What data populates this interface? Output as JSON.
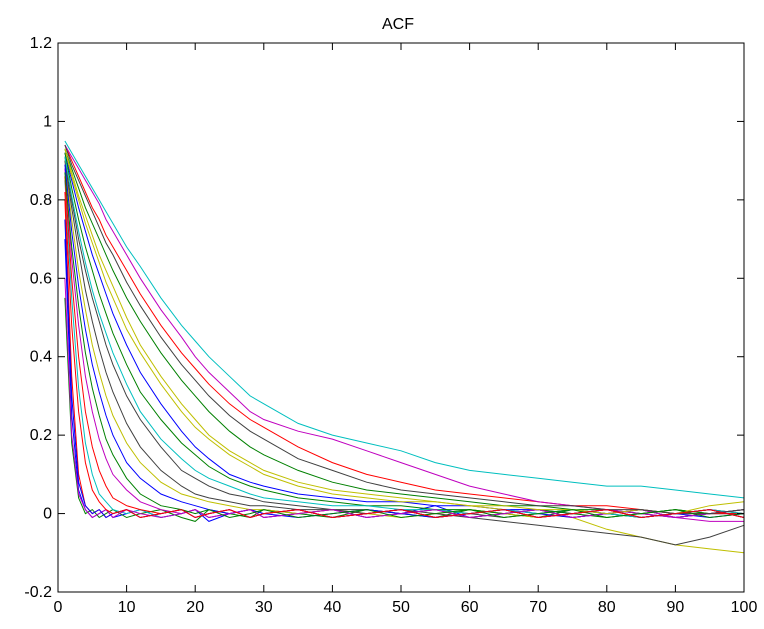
{
  "chart_data": {
    "type": "line",
    "title": "ACF",
    "xlabel": "",
    "ylabel": "",
    "xlim": [
      0,
      100
    ],
    "ylim": [
      -0.2,
      1.2
    ],
    "xticks": [
      0,
      10,
      20,
      30,
      40,
      50,
      60,
      70,
      80,
      90,
      100
    ],
    "xtick_labels": [
      "0",
      "10",
      "20",
      "30",
      "40",
      "50",
      "60",
      "70",
      "80",
      "90",
      "100"
    ],
    "yticks": [
      -0.2,
      0,
      0.2,
      0.4,
      0.6,
      0.8,
      1,
      1.2
    ],
    "ytick_labels": [
      "-0.2",
      "0",
      "0.2",
      "0.4",
      "0.6",
      "0.8",
      "1",
      "1.2"
    ],
    "grid": false,
    "legend": "none",
    "palette": [
      "#0000ff",
      "#008000",
      "#ff0000",
      "#00bfbf",
      "#bf00bf",
      "#bfbf00",
      "#404040"
    ],
    "x": [
      1,
      2,
      3,
      4,
      5,
      6,
      7,
      8,
      10,
      12,
      15,
      18,
      20,
      22,
      25,
      28,
      30,
      35,
      40,
      45,
      50,
      55,
      60,
      65,
      70,
      75,
      80,
      85,
      90,
      95,
      100
    ],
    "series": [
      {
        "values": [
          0.7,
          0.25,
          0.06,
          0.01,
          -0.01,
          0.0,
          0.01,
          -0.01,
          0.0,
          0.01,
          -0.01,
          0.0,
          0.01,
          -0.02,
          0.0,
          0.01,
          -0.01,
          0.0,
          0.01,
          -0.01,
          0.0,
          0.02,
          -0.01,
          0.0,
          0.01,
          -0.01,
          0.0,
          0.01,
          -0.01,
          0.0,
          0.01
        ]
      },
      {
        "values": [
          0.55,
          0.18,
          0.04,
          0.0,
          0.01,
          -0.01,
          0.0,
          0.01,
          -0.01,
          0.0,
          0.01,
          -0.01,
          -0.02,
          0.01,
          0.0,
          -0.01,
          0.01,
          0.0,
          -0.01,
          0.01,
          0.0,
          -0.01,
          0.01,
          0.0,
          -0.01,
          0.01,
          0.0,
          -0.01,
          0.0,
          0.01,
          -0.01
        ]
      },
      {
        "values": [
          0.8,
          0.35,
          0.1,
          0.02,
          0.0,
          0.01,
          -0.01,
          0.0,
          0.01,
          -0.01,
          0.0,
          0.01,
          -0.01,
          0.0,
          0.01,
          -0.01,
          0.0,
          0.01,
          -0.01,
          0.0,
          0.01,
          -0.01,
          0.0,
          0.01,
          -0.01,
          0.0,
          0.01,
          -0.01,
          0.0,
          0.01,
          0.0
        ]
      },
      {
        "values": [
          0.85,
          0.55,
          0.32,
          0.18,
          0.1,
          0.05,
          0.03,
          0.01,
          0.0,
          0.01,
          -0.01,
          0.0,
          0.01,
          -0.01,
          0.0,
          0.01,
          -0.01,
          0.0,
          0.01,
          -0.01,
          0.0,
          0.01,
          -0.01,
          0.0,
          0.01,
          -0.01,
          0.0,
          0.01,
          -0.01,
          0.0,
          0.01
        ]
      },
      {
        "values": [
          0.88,
          0.65,
          0.48,
          0.35,
          0.26,
          0.19,
          0.14,
          0.1,
          0.06,
          0.03,
          0.01,
          0.0,
          0.01,
          -0.01,
          0.0,
          0.01,
          -0.01,
          0.0,
          0.01,
          -0.01,
          0.0,
          0.01,
          -0.01,
          0.0,
          0.01,
          -0.01,
          0.0,
          0.01,
          -0.01,
          0.0,
          0.01
        ]
      },
      {
        "values": [
          0.9,
          0.75,
          0.62,
          0.52,
          0.43,
          0.36,
          0.3,
          0.25,
          0.18,
          0.13,
          0.08,
          0.05,
          0.04,
          0.03,
          0.02,
          0.01,
          0.01,
          0.0,
          0.01,
          0.0,
          -0.01,
          0.0,
          0.01,
          0.0,
          -0.01,
          0.0,
          0.01,
          0.0,
          -0.01,
          0.0,
          0.01
        ]
      },
      {
        "values": [
          0.91,
          0.8,
          0.7,
          0.62,
          0.55,
          0.49,
          0.43,
          0.38,
          0.3,
          0.24,
          0.17,
          0.11,
          0.09,
          0.07,
          0.05,
          0.04,
          0.03,
          0.02,
          0.01,
          0.01,
          0.0,
          0.01,
          0.0,
          -0.01,
          0.0,
          0.01,
          0.0,
          -0.01,
          0.0,
          0.01,
          0.0
        ]
      },
      {
        "values": [
          0.92,
          0.85,
          0.78,
          0.72,
          0.66,
          0.61,
          0.56,
          0.51,
          0.43,
          0.36,
          0.28,
          0.21,
          0.17,
          0.14,
          0.1,
          0.08,
          0.07,
          0.05,
          0.04,
          0.03,
          0.03,
          0.02,
          0.02,
          0.01,
          0.01,
          0.0,
          0.01,
          0.0,
          -0.01,
          0.0,
          0.0
        ]
      },
      {
        "values": [
          0.93,
          0.88,
          0.83,
          0.78,
          0.74,
          0.7,
          0.66,
          0.62,
          0.55,
          0.49,
          0.41,
          0.34,
          0.3,
          0.26,
          0.21,
          0.17,
          0.15,
          0.11,
          0.08,
          0.06,
          0.05,
          0.04,
          0.03,
          0.02,
          0.02,
          0.01,
          0.01,
          0.0,
          0.01,
          0.0,
          0.0
        ]
      },
      {
        "values": [
          0.94,
          0.9,
          0.86,
          0.82,
          0.78,
          0.75,
          0.71,
          0.68,
          0.62,
          0.56,
          0.48,
          0.41,
          0.37,
          0.33,
          0.28,
          0.24,
          0.22,
          0.17,
          0.13,
          0.1,
          0.08,
          0.06,
          0.05,
          0.04,
          0.03,
          0.02,
          0.02,
          0.01,
          0.0,
          0.0,
          0.0
        ]
      },
      {
        "values": [
          0.95,
          0.92,
          0.89,
          0.86,
          0.83,
          0.8,
          0.77,
          0.74,
          0.68,
          0.63,
          0.55,
          0.48,
          0.44,
          0.4,
          0.35,
          0.3,
          0.28,
          0.23,
          0.2,
          0.18,
          0.16,
          0.13,
          0.11,
          0.1,
          0.09,
          0.08,
          0.07,
          0.07,
          0.06,
          0.05,
          0.04
        ]
      },
      {
        "values": [
          0.94,
          0.91,
          0.88,
          0.85,
          0.82,
          0.79,
          0.75,
          0.72,
          0.66,
          0.6,
          0.52,
          0.45,
          0.4,
          0.36,
          0.31,
          0.26,
          0.24,
          0.21,
          0.19,
          0.16,
          0.13,
          0.1,
          0.07,
          0.05,
          0.03,
          0.02,
          0.01,
          0.0,
          -0.01,
          -0.02,
          -0.02
        ]
      },
      {
        "values": [
          0.93,
          0.87,
          0.81,
          0.76,
          0.71,
          0.66,
          0.62,
          0.58,
          0.5,
          0.43,
          0.35,
          0.28,
          0.24,
          0.2,
          0.16,
          0.13,
          0.11,
          0.08,
          0.06,
          0.05,
          0.04,
          0.03,
          0.02,
          0.01,
          0.0,
          -0.01,
          -0.04,
          -0.06,
          -0.08,
          -0.09,
          -0.1
        ]
      },
      {
        "values": [
          0.9,
          0.78,
          0.67,
          0.57,
          0.49,
          0.42,
          0.36,
          0.31,
          0.23,
          0.17,
          0.11,
          0.07,
          0.05,
          0.04,
          0.03,
          0.02,
          0.02,
          0.01,
          0.01,
          0.0,
          0.01,
          0.0,
          -0.01,
          -0.02,
          -0.03,
          -0.04,
          -0.05,
          -0.06,
          -0.08,
          -0.06,
          -0.03
        ]
      },
      {
        "values": [
          0.89,
          0.72,
          0.58,
          0.47,
          0.38,
          0.31,
          0.25,
          0.2,
          0.13,
          0.09,
          0.05,
          0.03,
          0.02,
          0.01,
          0.0,
          0.01,
          0.0,
          -0.01,
          0.0,
          0.01,
          0.0,
          -0.01,
          0.0,
          0.01,
          0.0,
          -0.01,
          0.0,
          0.01,
          0.0,
          -0.01,
          0.0
        ]
      },
      {
        "values": [
          0.92,
          0.83,
          0.75,
          0.68,
          0.62,
          0.56,
          0.51,
          0.46,
          0.38,
          0.31,
          0.24,
          0.18,
          0.15,
          0.12,
          0.09,
          0.07,
          0.06,
          0.04,
          0.03,
          0.02,
          0.02,
          0.01,
          0.01,
          0.0,
          0.01,
          0.0,
          -0.01,
          0.0,
          0.01,
          0.0,
          0.01
        ]
      },
      {
        "values": [
          0.86,
          0.6,
          0.4,
          0.26,
          0.17,
          0.11,
          0.07,
          0.04,
          0.02,
          0.01,
          0.0,
          0.01,
          -0.01,
          0.0,
          0.01,
          -0.01,
          0.0,
          0.01,
          -0.01,
          0.0,
          0.01,
          -0.01,
          0.0,
          0.01,
          -0.01,
          0.0,
          0.01,
          -0.01,
          0.0,
          0.01,
          -0.01
        ]
      },
      {
        "values": [
          0.91,
          0.81,
          0.72,
          0.64,
          0.57,
          0.51,
          0.46,
          0.41,
          0.33,
          0.26,
          0.19,
          0.14,
          0.11,
          0.09,
          0.07,
          0.05,
          0.04,
          0.03,
          0.02,
          0.02,
          0.01,
          0.01,
          0.0,
          0.01,
          0.0,
          0.01,
          0.0,
          -0.01,
          0.0,
          0.01,
          0.0
        ]
      },
      {
        "values": [
          0.6,
          0.2,
          0.05,
          0.01,
          -0.01,
          0.0,
          0.01,
          -0.01,
          0.01,
          0.0,
          -0.01,
          0.0,
          0.01,
          -0.01,
          0.0,
          0.01,
          -0.01,
          0.0,
          0.01,
          -0.01,
          0.0,
          0.01,
          -0.01,
          0.0,
          0.01,
          -0.01,
          0.0,
          0.01,
          -0.01,
          0.0,
          0.01
        ]
      },
      {
        "values": [
          0.93,
          0.86,
          0.8,
          0.74,
          0.69,
          0.64,
          0.59,
          0.55,
          0.47,
          0.41,
          0.33,
          0.26,
          0.22,
          0.19,
          0.15,
          0.12,
          0.1,
          0.07,
          0.05,
          0.04,
          0.03,
          0.03,
          0.02,
          0.02,
          0.01,
          0.01,
          0.0,
          0.01,
          0.0,
          0.02,
          0.03
        ]
      },
      {
        "values": [
          0.94,
          0.89,
          0.85,
          0.81,
          0.77,
          0.73,
          0.69,
          0.66,
          0.59,
          0.53,
          0.45,
          0.38,
          0.34,
          0.3,
          0.25,
          0.21,
          0.19,
          0.14,
          0.11,
          0.08,
          0.06,
          0.05,
          0.04,
          0.03,
          0.02,
          0.02,
          0.01,
          0.01,
          0.0,
          0.0,
          0.01
        ]
      },
      {
        "values": [
          0.75,
          0.3,
          0.08,
          0.02,
          0.0,
          0.01,
          -0.01,
          0.0,
          0.01,
          -0.01,
          0.0,
          0.01,
          -0.01,
          0.0,
          0.01,
          -0.01,
          0.0,
          0.01,
          -0.01,
          0.0,
          0.01,
          -0.01,
          0.0,
          0.01,
          -0.01,
          0.0,
          0.01,
          -0.01,
          0.0,
          0.01,
          -0.01
        ]
      },
      {
        "values": [
          0.87,
          0.68,
          0.53,
          0.41,
          0.32,
          0.25,
          0.19,
          0.15,
          0.09,
          0.05,
          0.02,
          0.01,
          0.0,
          0.01,
          -0.01,
          0.0,
          0.01,
          -0.01,
          0.0,
          0.01,
          -0.01,
          0.0,
          0.01,
          -0.01,
          0.0,
          0.01,
          -0.01,
          0.0,
          0.01,
          -0.01,
          0.0
        ]
      },
      {
        "values": [
          0.82,
          0.48,
          0.26,
          0.13,
          0.06,
          0.03,
          0.01,
          0.0,
          0.01,
          -0.01,
          0.0,
          0.01,
          -0.01,
          0.0,
          0.01,
          -0.01,
          0.0,
          0.01,
          -0.01,
          0.0,
          0.01,
          -0.01,
          0.0,
          0.01,
          -0.01,
          0.0,
          0.01,
          -0.01,
          0.0,
          0.01,
          -0.01
        ]
      }
    ]
  }
}
